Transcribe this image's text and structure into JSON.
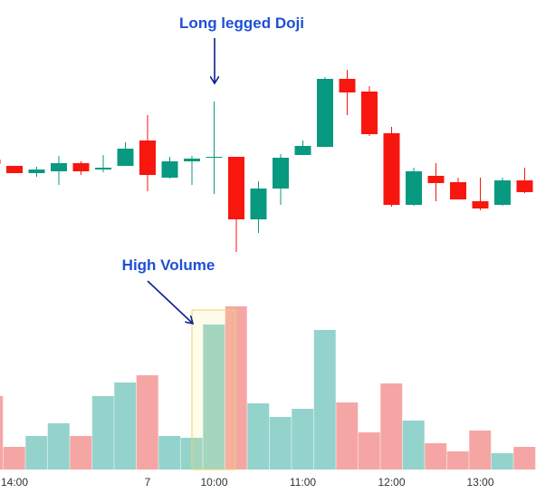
{
  "chart_data": {
    "type": "candlestick",
    "categories": [
      null,
      "14:00",
      null,
      null,
      null,
      null,
      null,
      "7",
      null,
      null,
      "10:00",
      null,
      null,
      null,
      "11:00",
      null,
      null,
      null,
      "12:00",
      null,
      null,
      null,
      "13:00",
      null,
      null
    ],
    "open": [
      124,
      117,
      109,
      111,
      120,
      113,
      117,
      145,
      104,
      122,
      126,
      127,
      58,
      92,
      129,
      138,
      213,
      199,
      153,
      74,
      106,
      99,
      78,
      74,
      101
    ],
    "high": [
      124,
      117,
      116,
      128,
      122,
      129,
      143,
      173,
      127,
      128,
      188,
      127,
      100,
      130,
      145,
      215,
      223,
      205,
      160,
      115,
      120,
      104,
      104,
      104,
      115
    ],
    "low": [
      119,
      109,
      105,
      96,
      107,
      110,
      117,
      89,
      103,
      96,
      86,
      22,
      43,
      74,
      129,
      138,
      173,
      150,
      72,
      73,
      78,
      80,
      68,
      73,
      87
    ],
    "close": [
      119,
      109,
      113,
      120,
      111,
      115,
      136,
      107,
      122,
      125,
      127,
      58,
      92,
      126,
      139,
      213,
      198,
      152,
      74,
      111,
      98,
      80,
      70,
      101,
      88
    ],
    "volume": [
      81,
      25,
      37,
      51,
      37,
      81,
      96,
      104,
      37,
      35,
      160,
      180,
      73,
      58,
      67,
      154,
      74,
      41,
      95,
      54,
      29,
      20,
      43,
      18,
      25
    ],
    "ylim": [
      0,
      300
    ],
    "volume_ylim": [
      0,
      200
    ],
    "up_color": "#089981",
    "down_color": "#f7170e",
    "volume_up_color": "#94d3cc",
    "volume_down_color": "#f5a6a4",
    "annotations": [
      {
        "text": "Long legged Doji"
      },
      {
        "text": "High Volume"
      }
    ]
  }
}
